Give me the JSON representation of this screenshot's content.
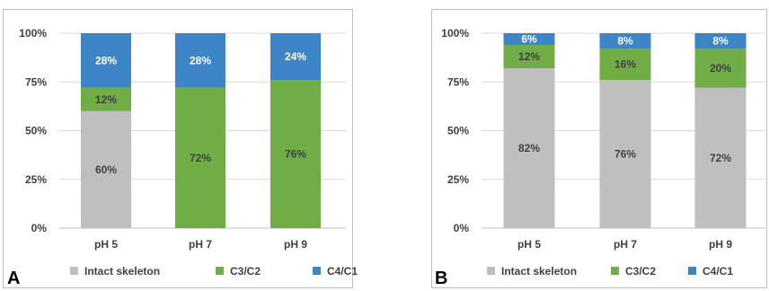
{
  "chart_data": [
    {
      "type": "bar",
      "stacked": true,
      "percent": true,
      "panel_label": "A",
      "categories": [
        "pH 5",
        "pH 7",
        "pH 9"
      ],
      "series": [
        {
          "name": "Intact skeleton",
          "color": "#bfbfbf",
          "values": [
            60,
            0,
            0
          ],
          "labels": [
            "60%",
            "",
            ""
          ]
        },
        {
          "name": "C3/C2",
          "color": "#70ad47",
          "values": [
            12,
            72,
            76
          ],
          "labels": [
            "12%",
            "72%",
            "76%"
          ]
        },
        {
          "name": "C4/C1",
          "color": "#3d85c6",
          "values": [
            28,
            28,
            24
          ],
          "labels": [
            "28%",
            "28%",
            "24%"
          ]
        }
      ],
      "ylim": [
        0,
        100
      ],
      "yticks": [
        "0%",
        "25%",
        "50%",
        "75%",
        "100%"
      ],
      "grid": true,
      "legend": "bottom"
    },
    {
      "type": "bar",
      "stacked": true,
      "percent": true,
      "panel_label": "B",
      "categories": [
        "pH 5",
        "pH 7",
        "pH 9"
      ],
      "series": [
        {
          "name": "Intact skeleton",
          "color": "#bfbfbf",
          "values": [
            82,
            76,
            72
          ],
          "labels": [
            "82%",
            "76%",
            "72%"
          ]
        },
        {
          "name": "C3/C2",
          "color": "#70ad47",
          "values": [
            12,
            16,
            20
          ],
          "labels": [
            "12%",
            "16%",
            "20%"
          ]
        },
        {
          "name": "C4/C1",
          "color": "#3d85c6",
          "values": [
            6,
            8,
            8
          ],
          "labels": [
            "6%",
            "8%",
            "8%"
          ]
        }
      ],
      "ylim": [
        0,
        100
      ],
      "yticks": [
        "0%",
        "25%",
        "50%",
        "75%",
        "100%"
      ],
      "grid": true,
      "legend": "bottom"
    }
  ]
}
